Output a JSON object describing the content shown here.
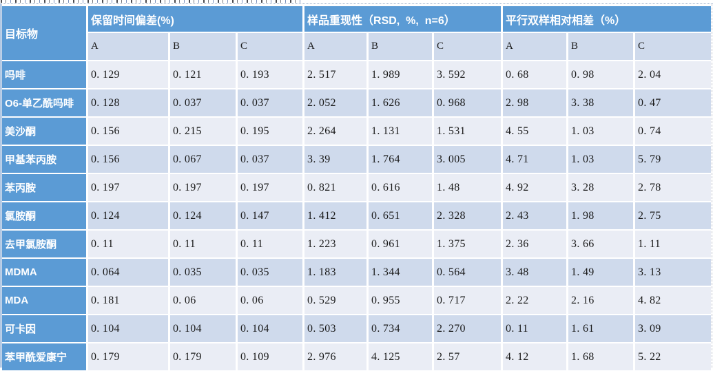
{
  "table": {
    "corner_header": "目标物",
    "column_groups": [
      {
        "label": "保留时间偏差(%)",
        "subcolumns": [
          "A",
          "B",
          "C"
        ]
      },
      {
        "label": "样品重现性（RSD,  %,  n=6）",
        "subcolumns": [
          "A",
          "B",
          "C"
        ]
      },
      {
        "label": "平行双样相对相差（%）",
        "subcolumns": [
          "A",
          "B",
          "C"
        ]
      }
    ],
    "rows": [
      {
        "name": "吗啡",
        "values": [
          "0.129",
          "0.121",
          "0.193",
          "2.517",
          "1.989",
          "3.592",
          "0.68",
          "0.98",
          "2.04"
        ]
      },
      {
        "name": "O6-单乙酰吗啡",
        "values": [
          "0.128",
          "0.037",
          "0.037",
          "2.052",
          "1.626",
          "0.968",
          "2.98",
          "3.38",
          "0.47"
        ]
      },
      {
        "name": "美沙酮",
        "values": [
          "0.156",
          "0.215",
          "0.195",
          "2.264",
          "1.131",
          "1.531",
          "4.55",
          "1.03",
          "0.74"
        ]
      },
      {
        "name": "甲基苯丙胺",
        "values": [
          "0.156",
          "0.067",
          "0.037",
          "3.39",
          "1.764",
          "3.005",
          "4.71",
          "1.03",
          "5.79"
        ]
      },
      {
        "name": "苯丙胺",
        "values": [
          "0.197",
          "0.197",
          "0.197",
          "0.821",
          "0.616",
          "1.48",
          "4.92",
          "3.28",
          "2.78"
        ]
      },
      {
        "name": "氯胺酮",
        "values": [
          "0.124",
          "0.124",
          "0.147",
          "1.412",
          "0.651",
          "2.328",
          "2.43",
          "1.98",
          "2.75"
        ]
      },
      {
        "name": "去甲氯胺酮",
        "values": [
          "0.11",
          "0.11",
          "0.11",
          "1.223",
          "0.961",
          "1.375",
          "2.36",
          "3.66",
          "1.11"
        ]
      },
      {
        "name": "MDMA",
        "values": [
          "0.064",
          "0.035",
          "0.035",
          "1.183",
          "1.344",
          "0.564",
          "3.48",
          "1.49",
          "3.13"
        ]
      },
      {
        "name": "MDA",
        "values": [
          "0.181",
          "0.06",
          "0.06",
          "0.529",
          "0.955",
          "0.717",
          "2.22",
          "2.16",
          "4.82"
        ]
      },
      {
        "name": "可卡因",
        "values": [
          "0.104",
          "0.104",
          "0.104",
          "0.503",
          "0.734",
          "2.270",
          "0.11",
          "1.61",
          "3.09"
        ]
      },
      {
        "name": "苯甲酰爱康宁",
        "values": [
          "0.179",
          "0.179",
          "0.109",
          "2.976",
          "4.125",
          "2.57",
          "4.12",
          "1.68",
          "5.22"
        ]
      }
    ]
  },
  "colors": {
    "header_blue": "#5B9BD5",
    "band_light": "#EAEDF5",
    "band_dark": "#CFDAEC",
    "grid_white": "#FFFFFF",
    "text_dark": "#1A1A1A"
  }
}
